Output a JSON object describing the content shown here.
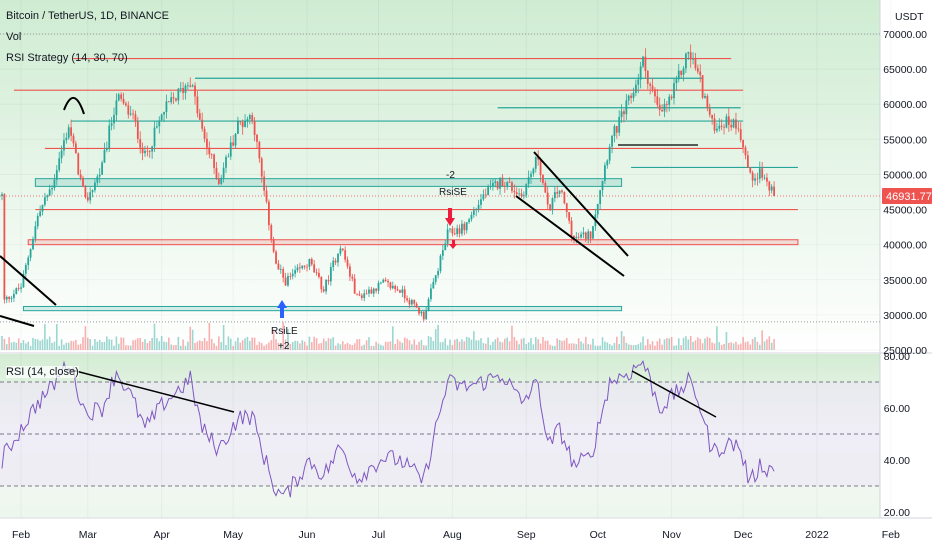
{
  "header": {
    "title": "Bitcoin / TetherUS, 1D, BINANCE",
    "vol_label": "Vol",
    "strategy_label": "RSI Strategy (14, 30, 70)",
    "currency": "USDT",
    "rsi_label": "RSI (14, close)"
  },
  "colors": {
    "up": "#26a69a",
    "down": "#ef5350",
    "rsi_line": "#7e57c2",
    "price_tag": "#ef5350",
    "green_bg": "#d6f0d6"
  },
  "markers": {
    "short_top": "-2",
    "short_label": "RsiSE",
    "long_label": "RsiLE",
    "long_bottom": "+2"
  },
  "chart_data": [
    {
      "type": "candlestick",
      "title": "Bitcoin / TetherUS, 1D, BINANCE",
      "ylabel": "USDT",
      "last_price": "46931.77",
      "y_ticks": [
        "70000.00",
        "65000.00",
        "60000.00",
        "55000.00",
        "50000.00",
        "45000.00",
        "40000.00",
        "35000.00",
        "30000.00",
        "25000.00"
      ],
      "ylim": [
        25000,
        70000
      ],
      "x_ticks": [
        "Feb",
        "Mar",
        "Apr",
        "May",
        "Jun",
        "Jul",
        "Aug",
        "Sep",
        "Oct",
        "Nov",
        "Dec",
        "2022",
        "Feb"
      ],
      "close_path": [
        [
          "2021-01-25",
          32000
        ],
        [
          "2021-02-01",
          34000
        ],
        [
          "2021-02-08",
          44000
        ],
        [
          "2021-02-14",
          48500
        ],
        [
          "2021-02-21",
          57000
        ],
        [
          "2021-02-28",
          46000
        ],
        [
          "2021-03-07",
          51000
        ],
        [
          "2021-03-13",
          61000
        ],
        [
          "2021-03-20",
          58000
        ],
        [
          "2021-03-25",
          52500
        ],
        [
          "2021-04-02",
          59000
        ],
        [
          "2021-04-13",
          63500
        ],
        [
          "2021-04-18",
          56000
        ],
        [
          "2021-04-25",
          49000
        ],
        [
          "2021-05-03",
          57000
        ],
        [
          "2021-05-09",
          58500
        ],
        [
          "2021-05-13",
          49500
        ],
        [
          "2021-05-19",
          37000
        ],
        [
          "2021-05-23",
          34800
        ],
        [
          "2021-06-02",
          37500
        ],
        [
          "2021-06-08",
          33500
        ],
        [
          "2021-06-15",
          40000
        ],
        [
          "2021-06-22",
          32500
        ],
        [
          "2021-07-03",
          34500
        ],
        [
          "2021-07-10",
          33500
        ],
        [
          "2021-07-20",
          29800
        ],
        [
          "2021-07-25",
          35500
        ],
        [
          "2021-07-30",
          41500
        ],
        [
          "2021-08-06",
          42500
        ],
        [
          "2021-08-14",
          47000
        ],
        [
          "2021-08-22",
          49200
        ],
        [
          "2021-08-30",
          47000
        ],
        [
          "2021-09-06",
          52500
        ],
        [
          "2021-09-10",
          45000
        ],
        [
          "2021-09-15",
          48000
        ],
        [
          "2021-09-21",
          40800
        ],
        [
          "2021-09-28",
          41500
        ],
        [
          "2021-10-06",
          54500
        ],
        [
          "2021-10-15",
          61000
        ],
        [
          "2021-10-20",
          66000
        ],
        [
          "2021-10-27",
          58500
        ],
        [
          "2021-11-01",
          61000
        ],
        [
          "2021-11-08",
          67500
        ],
        [
          "2021-11-12",
          64500
        ],
        [
          "2021-11-18",
          57000
        ],
        [
          "2021-11-24",
          57500
        ],
        [
          "2021-11-29",
          57200
        ],
        [
          "2021-12-04",
          49500
        ],
        [
          "2021-12-08",
          50500
        ],
        [
          "2021-12-14",
          46931
        ]
      ],
      "horizontal_levels": [
        {
          "price": 66500,
          "from": "2021-02-23",
          "to": "2021-11-26",
          "color": "#ef5350"
        },
        {
          "price": 62000,
          "from": "2021-01-29",
          "to": "2021-12-01",
          "color": "#ef5350"
        },
        {
          "price": 63700,
          "from": "2021-04-15",
          "to": "2021-11-14",
          "color": "#26a69a"
        },
        {
          "price": 59500,
          "from": "2021-08-20",
          "to": "2021-11-30",
          "color": "#26a69a"
        },
        {
          "price": 57600,
          "from": "2021-02-22",
          "to": "2021-12-01",
          "color": "#26a69a"
        },
        {
          "price": 53700,
          "from": "2021-02-11",
          "to": "2021-12-01",
          "color": "#ef5350"
        },
        {
          "price": 51000,
          "from": "2021-10-15",
          "to": "2021-12-24",
          "color": "#26a69a"
        },
        {
          "price": 45000,
          "from": "2021-02-07",
          "to": "2021-12-24",
          "color": "#ef5350"
        }
      ]
    },
    {
      "type": "line",
      "title": "RSI (14, close)",
      "y_ticks": [
        "80.00",
        "60.00",
        "40.00",
        "20.00"
      ],
      "ylim": [
        20,
        80
      ],
      "bands": [
        70,
        50,
        30
      ],
      "series": [
        {
          "values": [
            [
              "2021-01-25",
              42
            ],
            [
              "2021-02-01",
              52
            ],
            [
              "2021-02-08",
              62
            ],
            [
              "2021-02-14",
              68
            ],
            [
              "2021-02-21",
              78
            ],
            [
              "2021-02-28",
              58
            ],
            [
              "2021-03-07",
              60
            ],
            [
              "2021-03-13",
              74
            ],
            [
              "2021-03-20",
              63
            ],
            [
              "2021-03-25",
              52
            ],
            [
              "2021-04-02",
              62
            ],
            [
              "2021-04-13",
              71
            ],
            [
              "2021-04-18",
              52
            ],
            [
              "2021-04-25",
              44
            ],
            [
              "2021-05-03",
              56
            ],
            [
              "2021-05-09",
              57
            ],
            [
              "2021-05-13",
              44
            ],
            [
              "2021-05-19",
              28
            ],
            [
              "2021-05-23",
              26
            ],
            [
              "2021-06-02",
              40
            ],
            [
              "2021-06-08",
              34
            ],
            [
              "2021-06-15",
              45
            ],
            [
              "2021-06-22",
              33
            ],
            [
              "2021-07-03",
              41
            ],
            [
              "2021-07-10",
              40
            ],
            [
              "2021-07-20",
              32
            ],
            [
              "2021-07-25",
              52
            ],
            [
              "2021-07-30",
              70
            ],
            [
              "2021-08-06",
              68
            ],
            [
              "2021-08-14",
              70
            ],
            [
              "2021-08-22",
              73
            ],
            [
              "2021-08-30",
              62
            ],
            [
              "2021-09-06",
              70
            ],
            [
              "2021-09-10",
              45
            ],
            [
              "2021-09-15",
              52
            ],
            [
              "2021-09-21",
              38
            ],
            [
              "2021-09-28",
              41
            ],
            [
              "2021-10-06",
              70
            ],
            [
              "2021-10-15",
              74
            ],
            [
              "2021-10-20",
              78
            ],
            [
              "2021-10-27",
              60
            ],
            [
              "2021-11-01",
              64
            ],
            [
              "2021-11-08",
              70
            ],
            [
              "2021-11-12",
              64
            ],
            [
              "2021-11-18",
              43
            ],
            [
              "2021-11-24",
              46
            ],
            [
              "2021-11-29",
              46
            ],
            [
              "2021-12-04",
              31
            ],
            [
              "2021-12-08",
              38
            ],
            [
              "2021-12-14",
              36
            ]
          ]
        }
      ]
    }
  ]
}
